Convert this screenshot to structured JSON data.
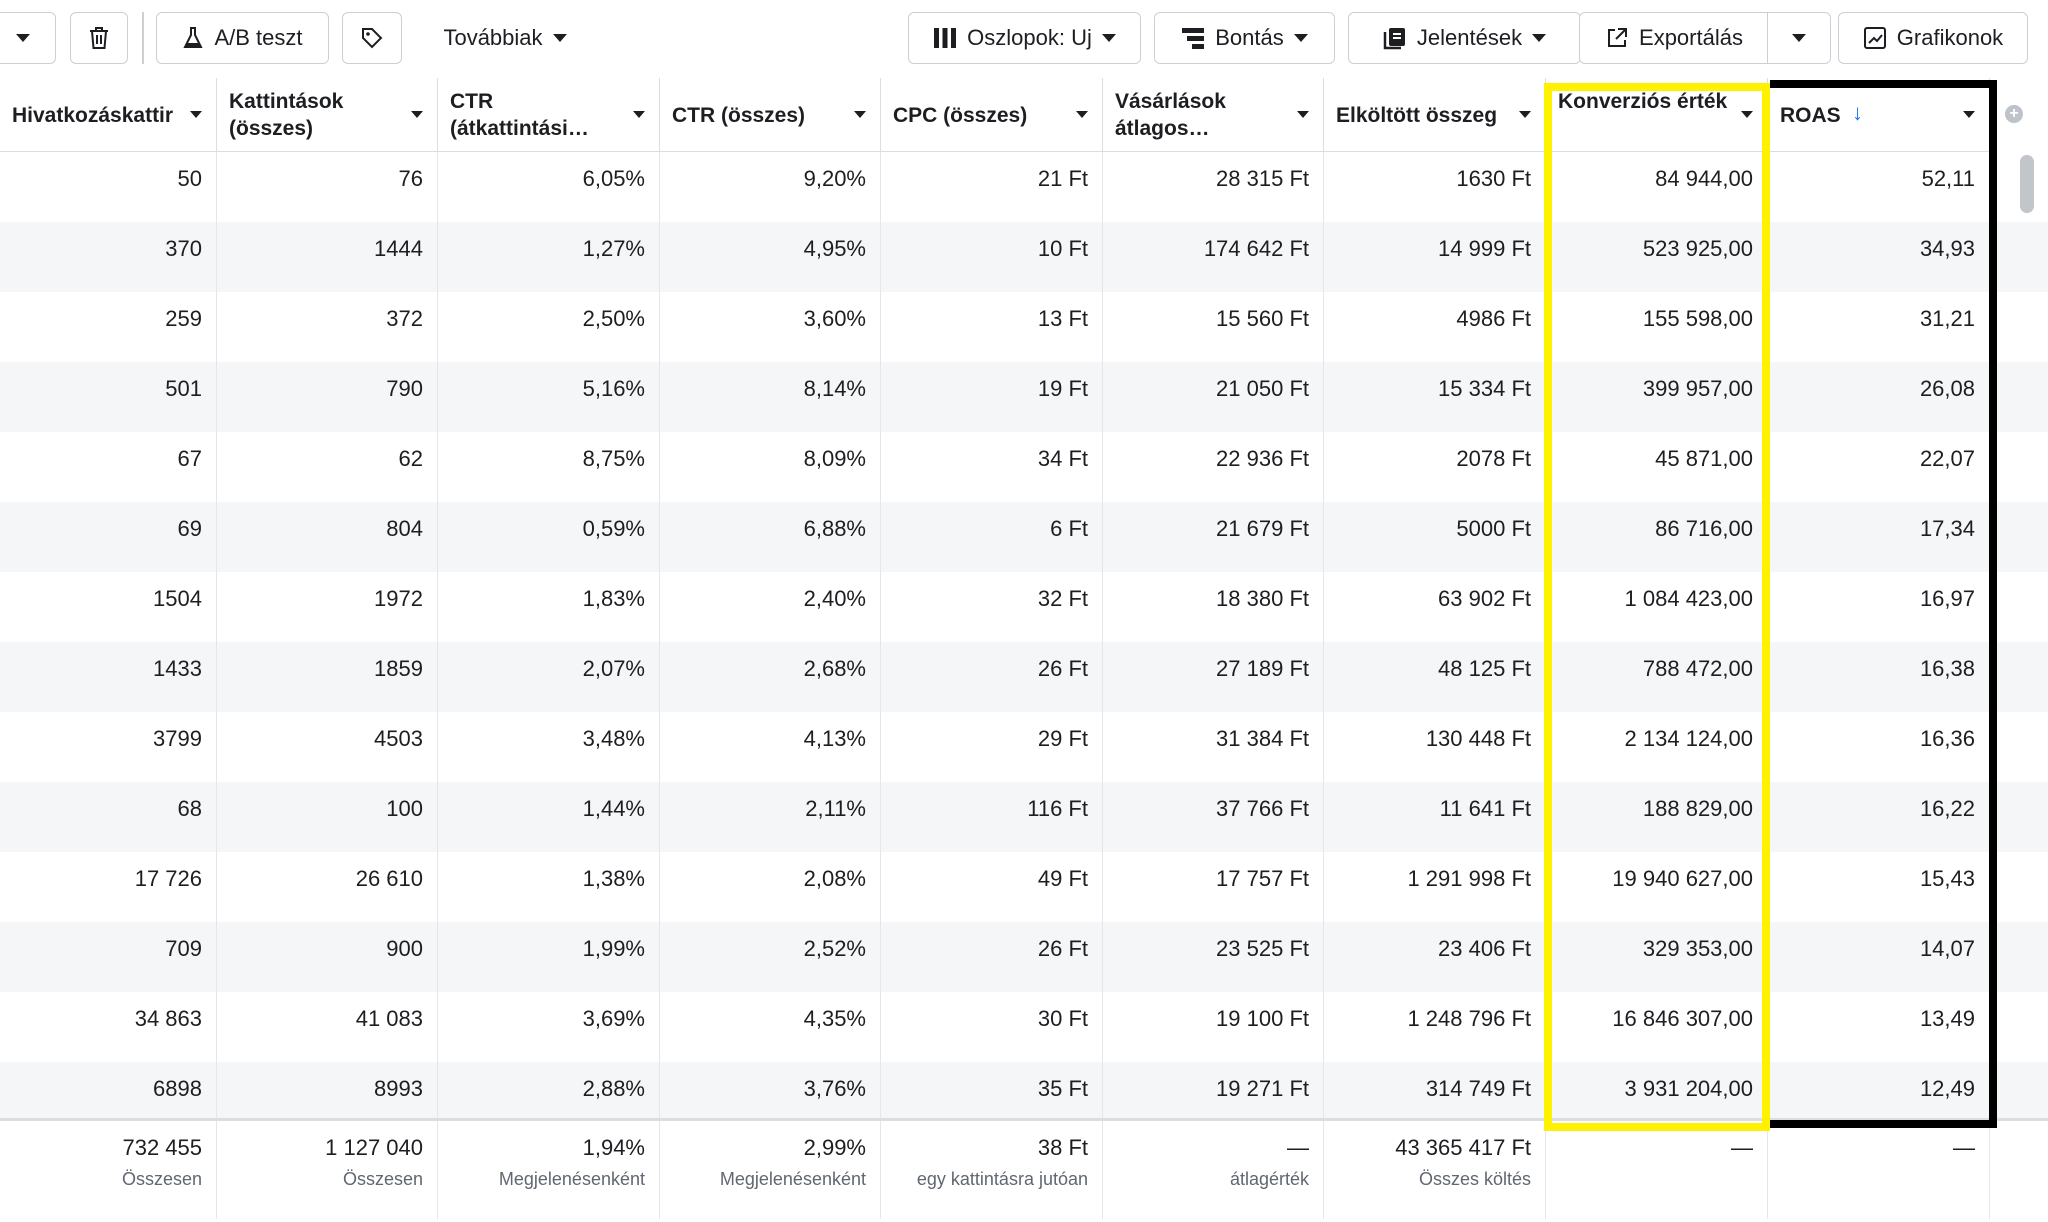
{
  "toolbar": {
    "ab_test_label": "A/B teszt",
    "more_label": "Továbbiak",
    "columns_label": "Oszlopok: Uj",
    "breakdown_label": "Bontás",
    "reports_label": "Jelentések",
    "export_label": "Exportálás",
    "charts_label": "Grafikonok"
  },
  "headers": [
    "Hivatkozáskattir",
    "Kattintások (összes)",
    "CTR (átkattintási…",
    "CTR (összes)",
    "CPC (összes)",
    "Vásárlások átlagos…",
    "Elköltött összeg",
    "Konverziós érték",
    "ROAS"
  ],
  "rows": [
    [
      "50",
      "76",
      "6,05%",
      "9,20%",
      "21 Ft",
      "28 315 Ft",
      "1630 Ft",
      "84 944,00",
      "52,11"
    ],
    [
      "370",
      "1444",
      "1,27%",
      "4,95%",
      "10 Ft",
      "174 642 Ft",
      "14 999 Ft",
      "523 925,00",
      "34,93"
    ],
    [
      "259",
      "372",
      "2,50%",
      "3,60%",
      "13 Ft",
      "15 560 Ft",
      "4986 Ft",
      "155 598,00",
      "31,21"
    ],
    [
      "501",
      "790",
      "5,16%",
      "8,14%",
      "19 Ft",
      "21 050 Ft",
      "15 334 Ft",
      "399 957,00",
      "26,08"
    ],
    [
      "67",
      "62",
      "8,75%",
      "8,09%",
      "34 Ft",
      "22 936 Ft",
      "2078 Ft",
      "45 871,00",
      "22,07"
    ],
    [
      "69",
      "804",
      "0,59%",
      "6,88%",
      "6 Ft",
      "21 679 Ft",
      "5000 Ft",
      "86 716,00",
      "17,34"
    ],
    [
      "1504",
      "1972",
      "1,83%",
      "2,40%",
      "32 Ft",
      "18 380 Ft",
      "63 902 Ft",
      "1 084 423,00",
      "16,97"
    ],
    [
      "1433",
      "1859",
      "2,07%",
      "2,68%",
      "26 Ft",
      "27 189 Ft",
      "48 125 Ft",
      "788 472,00",
      "16,38"
    ],
    [
      "3799",
      "4503",
      "3,48%",
      "4,13%",
      "29 Ft",
      "31 384 Ft",
      "130 448 Ft",
      "2 134 124,00",
      "16,36"
    ],
    [
      "68",
      "100",
      "1,44%",
      "2,11%",
      "116 Ft",
      "37 766 Ft",
      "11 641 Ft",
      "188 829,00",
      "16,22"
    ],
    [
      "17 726",
      "26 610",
      "1,38%",
      "2,08%",
      "49 Ft",
      "17 757 Ft",
      "1 291 998 Ft",
      "19 940 627,00",
      "15,43"
    ],
    [
      "709",
      "900",
      "1,99%",
      "2,52%",
      "26 Ft",
      "23 525 Ft",
      "23 406 Ft",
      "329 353,00",
      "14,07"
    ],
    [
      "34 863",
      "41 083",
      "3,69%",
      "4,35%",
      "30 Ft",
      "19 100 Ft",
      "1 248 796 Ft",
      "16 846 307,00",
      "13,49"
    ],
    [
      "6898",
      "8993",
      "2,88%",
      "3,76%",
      "35 Ft",
      "19 271 Ft",
      "314 749 Ft",
      "3 931 204,00",
      "12,49"
    ]
  ],
  "totals": [
    {
      "value": "732 455",
      "sub": "Összesen"
    },
    {
      "value": "1 127 040",
      "sub": "Összesen"
    },
    {
      "value": "1,94%",
      "sub": "Megjelenésenként"
    },
    {
      "value": "2,99%",
      "sub": "Megjelenésenként"
    },
    {
      "value": "38 Ft",
      "sub": "egy kattintásra jutóan"
    },
    {
      "value": "—",
      "sub": "átlagérték"
    },
    {
      "value": "43 365 417 Ft",
      "sub": "Összes költés"
    },
    {
      "value": "—",
      "sub": ""
    },
    {
      "value": "—",
      "sub": ""
    }
  ],
  "colors": {
    "highlight_yellow": "#fff200",
    "highlight_black": "#000000",
    "sort_arrow": "#1877f2"
  }
}
